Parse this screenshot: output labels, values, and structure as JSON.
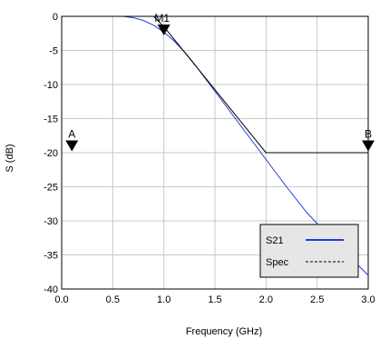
{
  "chart_data": {
    "type": "line",
    "title": "",
    "xlabel": "Frequency (GHz)",
    "ylabel": "S (dB)",
    "xlim": [
      0.0,
      3.0
    ],
    "ylim": [
      -40,
      0
    ],
    "xticks": [
      "0.0",
      "0.5",
      "1.0",
      "1.5",
      "2.0",
      "2.5",
      "3.0"
    ],
    "yticks": [
      "0",
      "-5",
      "-10",
      "-15",
      "-20",
      "-25",
      "-30",
      "-35",
      "-40"
    ],
    "grid": true,
    "legend_position": "bottom-right",
    "series": [
      {
        "name": "S21",
        "color": "#1f3fd8",
        "x": [
          0.0,
          0.5,
          0.6,
          0.7,
          0.8,
          0.9,
          1.0,
          1.1,
          1.2,
          1.3,
          1.4,
          1.5,
          1.6,
          1.7,
          1.8,
          1.9,
          2.0,
          2.2,
          2.4,
          2.6,
          2.8,
          3.0
        ],
        "y": [
          0,
          0,
          0,
          -0.2,
          -0.6,
          -1.3,
          -2.3,
          -3.6,
          -5.2,
          -7.0,
          -9.0,
          -11.0,
          -13.0,
          -15.0,
          -17.0,
          -19.0,
          -21.0,
          -25.0,
          -28.8,
          -32.0,
          -35.0,
          -38.0
        ]
      },
      {
        "name": "Spec",
        "color": "#000000",
        "x": [
          0.0,
          0.9,
          1.0,
          2.0,
          3.0
        ],
        "y": [
          0,
          0,
          -1.5,
          -20,
          -20
        ]
      }
    ],
    "markers": [
      {
        "label": "M1",
        "x": 1.0,
        "y": -2.0
      },
      {
        "label": "A",
        "x": 0.1,
        "y": -19.0
      },
      {
        "label": "B",
        "x": 3.0,
        "y": -19.0
      }
    ]
  }
}
